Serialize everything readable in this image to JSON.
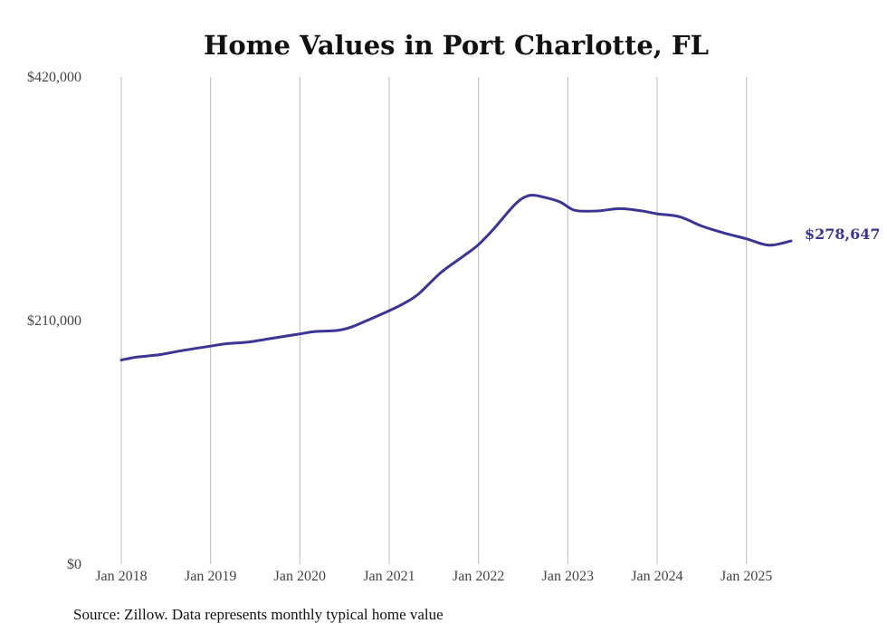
{
  "chart_data": {
    "type": "line",
    "title": "Home Values in Port Charlotte, FL",
    "source": "Source: Zillow. Data represents monthly typical home value",
    "ylim": [
      0,
      420000
    ],
    "y_ticks": [
      {
        "value": 0,
        "label": "$0"
      },
      {
        "value": 210000,
        "label": "$210,000"
      },
      {
        "value": 420000,
        "label": "$420,000"
      }
    ],
    "x_ticks": [
      {
        "value": 2018,
        "label": "Jan 2018"
      },
      {
        "value": 2019,
        "label": "Jan 2019"
      },
      {
        "value": 2020,
        "label": "Jan 2020"
      },
      {
        "value": 2021,
        "label": "Jan 2021"
      },
      {
        "value": 2022,
        "label": "Jan 2022"
      },
      {
        "value": 2023,
        "label": "Jan 2023"
      },
      {
        "value": 2024,
        "label": "Jan 2024"
      },
      {
        "value": 2025,
        "label": "Jan 2025"
      }
    ],
    "xlim": [
      2018,
      2025.5
    ],
    "grid": "vertical",
    "line_color": "#3a3596",
    "end_label": "$278,647",
    "series": [
      {
        "x": [
          2018.0,
          2018.17,
          2018.42,
          2018.67,
          2019.0,
          2019.17,
          2019.42,
          2019.67,
          2020.0,
          2020.17,
          2020.42,
          2020.58,
          2020.75,
          2021.0,
          2021.17,
          2021.33,
          2021.58,
          2021.83,
          2022.0,
          2022.17,
          2022.42,
          2022.58,
          2022.75,
          2022.92,
          2023.08,
          2023.33,
          2023.58,
          2023.83,
          2024.0,
          2024.25,
          2024.5,
          2024.75,
          2025.0,
          2025.25,
          2025.5
        ],
        "y": [
          176000,
          178500,
          180500,
          184000,
          188000,
          190000,
          191500,
          194500,
          198500,
          200500,
          201500,
          204500,
          210000,
          218500,
          225000,
          233000,
          251500,
          265500,
          275500,
          289000,
          311000,
          318000,
          316000,
          312000,
          305000,
          304500,
          306500,
          304500,
          302000,
          299500,
          291500,
          285500,
          280500,
          275000,
          278647
        ]
      }
    ]
  }
}
